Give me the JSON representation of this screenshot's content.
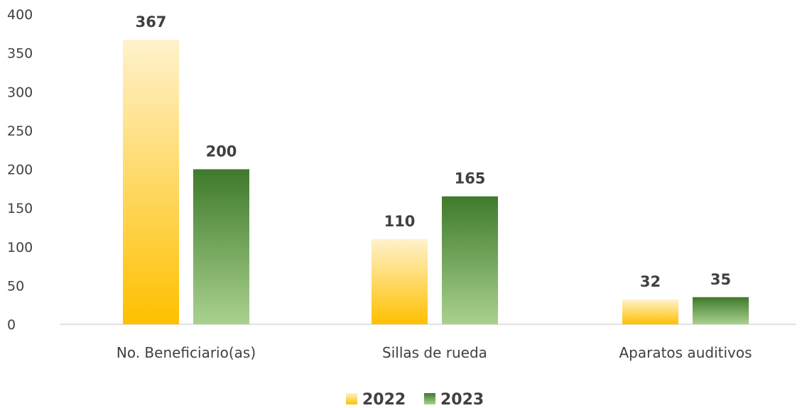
{
  "chart_data": {
    "type": "bar",
    "categories": [
      "No. Beneficiario(as)",
      "Sillas de rueda",
      "Aparatos auditivos"
    ],
    "series": [
      {
        "name": "2022",
        "values": [
          367,
          110,
          32
        ],
        "color": "#ffc000",
        "color_light": "#fff2cc"
      },
      {
        "name": "2023",
        "values": [
          200,
          165,
          35
        ],
        "color": "#3f7a2b",
        "color_light": "#a9d18e"
      }
    ],
    "title": "",
    "xlabel": "",
    "ylabel": "",
    "ylim": [
      0,
      400
    ],
    "yticks": [
      0,
      50,
      100,
      150,
      200,
      250,
      300,
      350,
      400
    ],
    "grid": false,
    "data_labels": true,
    "legend_position": "bottom"
  }
}
